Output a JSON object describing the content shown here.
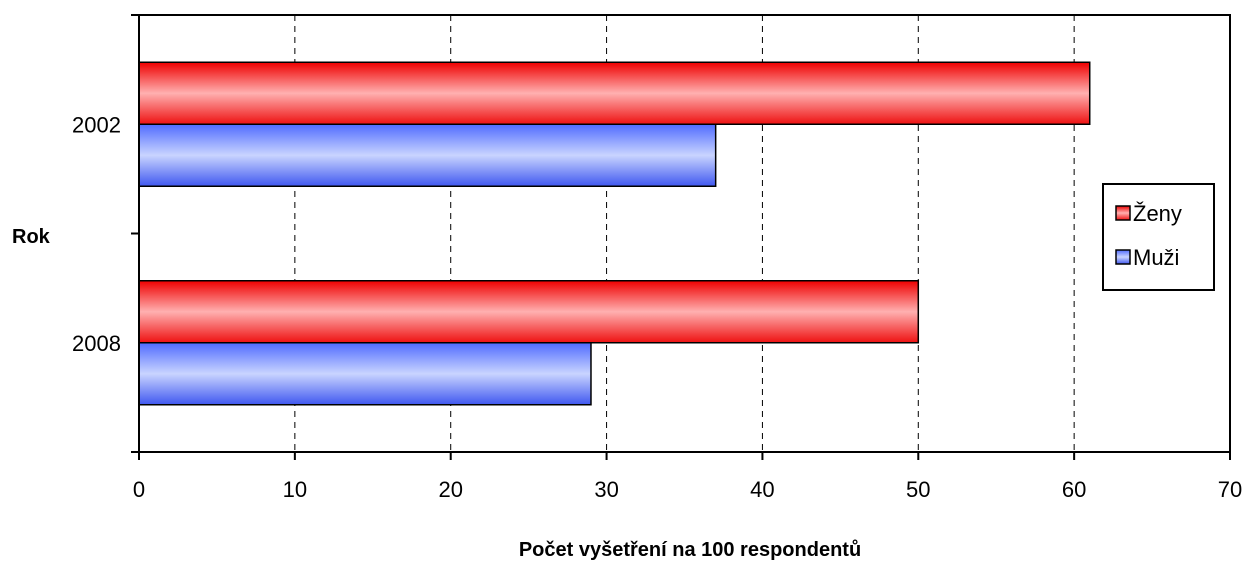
{
  "chart_data": {
    "type": "bar",
    "orientation": "horizontal",
    "categories": [
      "2002",
      "2008"
    ],
    "series": [
      {
        "name": "Ženy",
        "values": [
          61,
          50
        ],
        "color": "#ff4d4d"
      },
      {
        "name": "Muži",
        "values": [
          37,
          29
        ],
        "color": "#5a74ff"
      }
    ],
    "xlabel": "Počet vyšetření na 100 respondentů",
    "ylabel": "Rok",
    "xlim": [
      0,
      70
    ],
    "xticks": [
      0,
      10,
      20,
      30,
      40,
      50,
      60,
      70
    ],
    "grid": "vertical-dashed",
    "legend_position": "right"
  }
}
